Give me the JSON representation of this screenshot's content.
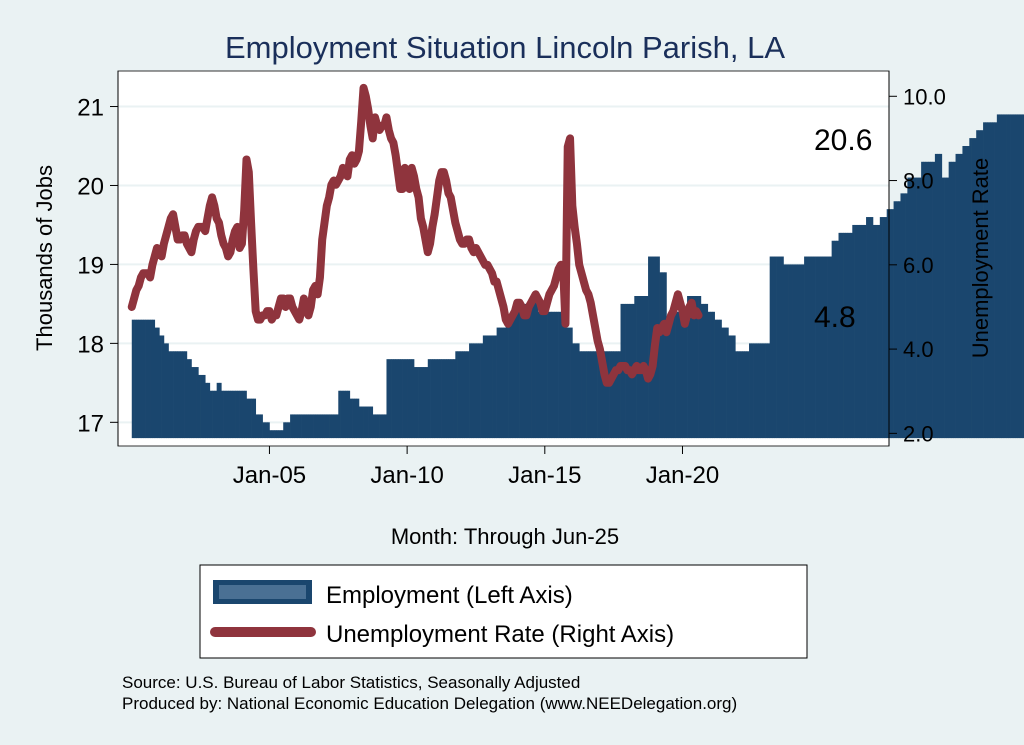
{
  "chart_data": {
    "type": "bar+line",
    "title": "Employment Situation Lincoln Parish, LA",
    "xlabel": "Month: Through Jun-25",
    "ylabel_left": "Thousands of Jobs",
    "ylabel_right": "Unemployment Rate",
    "x_ticks": [
      "Jan-05",
      "Jan-10",
      "Jan-15",
      "Jan-20"
    ],
    "y_left_ticks": [
      "17",
      "18",
      "19",
      "20",
      "21"
    ],
    "y_right_ticks": [
      "2.0",
      "4.0",
      "6.0",
      "8.0",
      "10.0"
    ],
    "x_start": 2000.0,
    "x_range": [
      1999.5,
      2027.5
    ],
    "ylim_left": [
      16.7,
      21.45
    ],
    "ylim_right": [
      1.7,
      10.6
    ],
    "bar_base": 16.8,
    "series": [
      {
        "name": "Employment (Left Axis)",
        "kind": "bar",
        "color": "#1a466e",
        "last_value_label": "20.6",
        "values": [
          18.3,
          18.3,
          18.3,
          18.3,
          18.3,
          18.3,
          18.3,
          18.3,
          18.3,
          18.3,
          18.2,
          18.2,
          18.1,
          18.1,
          18.0,
          18.0,
          17.9,
          17.9,
          17.9,
          17.9,
          17.9,
          17.9,
          17.9,
          17.9,
          17.8,
          17.8,
          17.7,
          17.7,
          17.7,
          17.6,
          17.6,
          17.6,
          17.5,
          17.5,
          17.4,
          17.4,
          17.4,
          17.5,
          17.5,
          17.4,
          17.4,
          17.4,
          17.4,
          17.4,
          17.4,
          17.4,
          17.4,
          17.4,
          17.4,
          17.4,
          17.3,
          17.3,
          17.3,
          17.3,
          17.1,
          17.1,
          17.1,
          17.0,
          17.0,
          17.0,
          16.9,
          16.9,
          16.9,
          16.9,
          16.9,
          16.9,
          17.0,
          17.0,
          17.0,
          17.1,
          17.1,
          17.1,
          17.1,
          17.1,
          17.1,
          17.1,
          17.1,
          17.1,
          17.1,
          17.1,
          17.1,
          17.1,
          17.1,
          17.1,
          17.1,
          17.1,
          17.1,
          17.1,
          17.1,
          17.1,
          17.4,
          17.4,
          17.4,
          17.4,
          17.4,
          17.3,
          17.3,
          17.3,
          17.3,
          17.2,
          17.2,
          17.2,
          17.2,
          17.2,
          17.2,
          17.1,
          17.1,
          17.1,
          17.1,
          17.1,
          17.1,
          17.8,
          17.8,
          17.8,
          17.8,
          17.8,
          17.8,
          17.8,
          17.8,
          17.8,
          17.8,
          17.8,
          17.8,
          17.7,
          17.7,
          17.7,
          17.7,
          17.7,
          17.7,
          17.8,
          17.8,
          17.8,
          17.8,
          17.8,
          17.8,
          17.8,
          17.8,
          17.8,
          17.8,
          17.8,
          17.8,
          17.9,
          17.9,
          17.9,
          17.9,
          17.9,
          17.9,
          18.0,
          18.0,
          18.0,
          18.0,
          18.0,
          18.0,
          18.1,
          18.1,
          18.1,
          18.1,
          18.1,
          18.1,
          18.2,
          18.2,
          18.2,
          18.2,
          18.3,
          18.3,
          18.3,
          18.4,
          18.4,
          18.4,
          18.4,
          18.4,
          18.5,
          18.5,
          18.5,
          18.6,
          18.6,
          18.6,
          18.4,
          18.4,
          18.4,
          18.4,
          18.4,
          18.4,
          18.4,
          18.4,
          18.4,
          18.4,
          18.4,
          18.4,
          18.2,
          18.2,
          18.2,
          18.0,
          18.0,
          18.0,
          17.9,
          17.9,
          17.9,
          17.9,
          17.9,
          17.9,
          17.9,
          17.9,
          17.9,
          17.9,
          17.9,
          17.9,
          17.9,
          17.9,
          17.9,
          17.9,
          17.9,
          17.9,
          18.5,
          18.5,
          18.5,
          18.5,
          18.5,
          18.5,
          18.6,
          18.6,
          18.6,
          18.6,
          18.6,
          18.6,
          19.1,
          19.1,
          19.1,
          19.1,
          19.1,
          18.9,
          18.9,
          18.9,
          18.3,
          18.3,
          18.3,
          18.4,
          18.4,
          18.4,
          18.3,
          18.3,
          18.3,
          18.6,
          18.6,
          18.6,
          18.6,
          18.6,
          18.6,
          18.5,
          18.5,
          18.5,
          18.4,
          18.4,
          18.4,
          18.3,
          18.3,
          18.3,
          18.2,
          18.2,
          18.2,
          18.1,
          18.1,
          18.1,
          17.9,
          17.9,
          17.9,
          17.9,
          17.9,
          17.9,
          18.0,
          18.0,
          18.0,
          18.0,
          18.0,
          18.0,
          18.0,
          18.0,
          18.0,
          19.1,
          19.1,
          19.1,
          19.1,
          19.1,
          19.1,
          19.0,
          19.0,
          19.0,
          19.0,
          19.0,
          19.0,
          19.0,
          19.0,
          19.0,
          19.1,
          19.1,
          19.1,
          19.1,
          19.1,
          19.1,
          19.1,
          19.1,
          19.1,
          19.1,
          19.1,
          19.1,
          19.3,
          19.3,
          19.3,
          19.4,
          19.4,
          19.4,
          19.4,
          19.4,
          19.4,
          19.5,
          19.5,
          19.5,
          19.5,
          19.5,
          19.5,
          19.6,
          19.6,
          19.6,
          19.5,
          19.5,
          19.5,
          19.6,
          19.6,
          19.6,
          19.7,
          19.7,
          19.7,
          19.8,
          19.8,
          19.8,
          19.9,
          19.9,
          19.9,
          20.1,
          20.1,
          20.1,
          20.1,
          20.1,
          20.1,
          20.3,
          20.3,
          20.3,
          20.3,
          20.3,
          20.3,
          20.4,
          20.4,
          20.4,
          20.1,
          20.1,
          20.1,
          20.3,
          20.3,
          20.3,
          20.4,
          20.4,
          20.4,
          20.5,
          20.5,
          20.5,
          20.6,
          20.6,
          20.6,
          20.7,
          20.7,
          20.7,
          20.8,
          20.8,
          20.8,
          20.8,
          20.8,
          20.8,
          20.9,
          20.9,
          20.9,
          20.9,
          20.9,
          20.9,
          20.9,
          20.9,
          20.9,
          20.9,
          20.9,
          20.9,
          20.9,
          20.9,
          20.9,
          20.8,
          20.8,
          20.8,
          20.9,
          20.9,
          20.9,
          20.9,
          20.9,
          20.9,
          20.8,
          20.8,
          20.8,
          20.8,
          20.8,
          20.8,
          20.7,
          20.7,
          20.7,
          20.9,
          20.9,
          20.9,
          20.8,
          20.8,
          20.8,
          20.7,
          20.7,
          20.7,
          20.6,
          20.6,
          20.6,
          20.2,
          20.2,
          20.2,
          20.2,
          20.2,
          20.2,
          20.3,
          20.3,
          20.3,
          20.4,
          20.4,
          20.4,
          20.6,
          20.6,
          20.6,
          20.6,
          20.6,
          20.6,
          20.7,
          20.7,
          20.7,
          20.7,
          20.7,
          20.7,
          20.7,
          20.7,
          20.7,
          20.8,
          20.8,
          20.8,
          20.9,
          20.9,
          20.9,
          21.0,
          21.0,
          21.0,
          21.0,
          21.0,
          21.0,
          21.1,
          21.1,
          21.1,
          21.1,
          21.1,
          21.1,
          20.8,
          20.8,
          20.8,
          20.5,
          20.5,
          20.5,
          20.5,
          20.5,
          20.5,
          20.6,
          20.6,
          20.6,
          20.9,
          20.9,
          20.9,
          20.9,
          20.9,
          20.9,
          20.4,
          20.4,
          20.4,
          20.5,
          20.5,
          20.5,
          20.6,
          20.6,
          20.6,
          20.6,
          20.6,
          20.6,
          20.6,
          20.6,
          20.6
        ]
      },
      {
        "name": "Unemployment Rate (Right Axis)",
        "kind": "line",
        "color": "#8f343d",
        "last_value_label": "4.8",
        "values": [
          5.0,
          5.2,
          5.4,
          5.5,
          5.7,
          5.8,
          5.8,
          5.8,
          5.7,
          6.0,
          6.2,
          6.4,
          6.3,
          6.2,
          6.5,
          6.7,
          6.9,
          7.1,
          7.2,
          6.9,
          6.6,
          6.6,
          6.7,
          6.7,
          6.5,
          6.4,
          6.3,
          6.6,
          6.8,
          6.9,
          6.9,
          6.9,
          6.8,
          7.1,
          7.4,
          7.6,
          7.4,
          7.1,
          7.0,
          6.7,
          6.5,
          6.4,
          6.2,
          6.3,
          6.6,
          6.8,
          6.9,
          6.4,
          6.5,
          7.3,
          8.5,
          8.2,
          7.0,
          5.9,
          4.9,
          4.7,
          4.7,
          4.8,
          4.8,
          4.9,
          4.9,
          4.7,
          4.8,
          4.8,
          5.0,
          5.2,
          5.2,
          5.0,
          5.2,
          5.2,
          5.0,
          4.9,
          4.8,
          4.7,
          4.9,
          5.2,
          5.0,
          4.8,
          5.0,
          5.4,
          5.5,
          5.3,
          5.7,
          6.6,
          7.0,
          7.4,
          7.6,
          7.9,
          8.0,
          7.9,
          8.0,
          8.1,
          8.3,
          8.2,
          8.1,
          8.5,
          8.6,
          8.4,
          8.5,
          8.7,
          9.4,
          10.2,
          10.0,
          9.7,
          9.3,
          9.0,
          9.5,
          9.3,
          9.2,
          9.3,
          9.3,
          9.5,
          9.2,
          9.0,
          8.9,
          8.6,
          8.2,
          7.8,
          7.8,
          8.3,
          8.2,
          7.8,
          8.3,
          8.1,
          7.8,
          7.6,
          7.1,
          6.9,
          6.6,
          6.3,
          6.5,
          6.9,
          7.2,
          7.6,
          8.0,
          8.2,
          8.2,
          8.0,
          7.7,
          7.6,
          7.3,
          7.0,
          6.8,
          6.6,
          6.5,
          6.5,
          6.6,
          6.6,
          6.4,
          6.3,
          6.4,
          6.3,
          6.2,
          6.1,
          6.0,
          6.0,
          5.9,
          5.8,
          5.6,
          5.6,
          5.4,
          5.2,
          5.0,
          4.7,
          4.6,
          4.7,
          4.8,
          4.9,
          5.1,
          5.1,
          5.0,
          4.8,
          4.8,
          5.0,
          5.1,
          5.2,
          5.3,
          5.2,
          5.1,
          4.9,
          4.9,
          5.1,
          5.3,
          5.4,
          5.5,
          5.7,
          5.9,
          6.0,
          5.9,
          4.6,
          8.8,
          9.0,
          7.4,
          6.9,
          6.5,
          6.0,
          5.8,
          5.6,
          5.4,
          5.3,
          5.1,
          4.8,
          4.5,
          4.2,
          4.0,
          3.7,
          3.4,
          3.2,
          3.2,
          3.3,
          3.4,
          3.5,
          3.5,
          3.6,
          3.6,
          3.6,
          3.5,
          3.5,
          3.4,
          3.5,
          3.6,
          3.5,
          3.5,
          3.6,
          3.5,
          3.3,
          3.4,
          3.6,
          4.1,
          4.5,
          4.4,
          4.5,
          4.6,
          4.4,
          4.6,
          4.8,
          4.9,
          5.1,
          5.3,
          5.1,
          4.9,
          4.6,
          4.8,
          5.0,
          5.1,
          4.8,
          4.9,
          4.8
        ]
      }
    ]
  },
  "legend": {
    "employment": "Employment (Left Axis)",
    "unemployment": "Unemployment Rate (Right Axis)"
  },
  "footer": {
    "source": "Source: U.S. Bureau of Labor Statistics, Seasonally Adjusted",
    "produced_by": "Produced by: National Economic Education Delegation (www.NEEDelegation.org)"
  },
  "colors": {
    "background": "#eaf2f3",
    "plot_background": "#ffffff",
    "title": "#1a2f5a",
    "employment": "#1a466e",
    "unemployment": "#8f343d"
  }
}
